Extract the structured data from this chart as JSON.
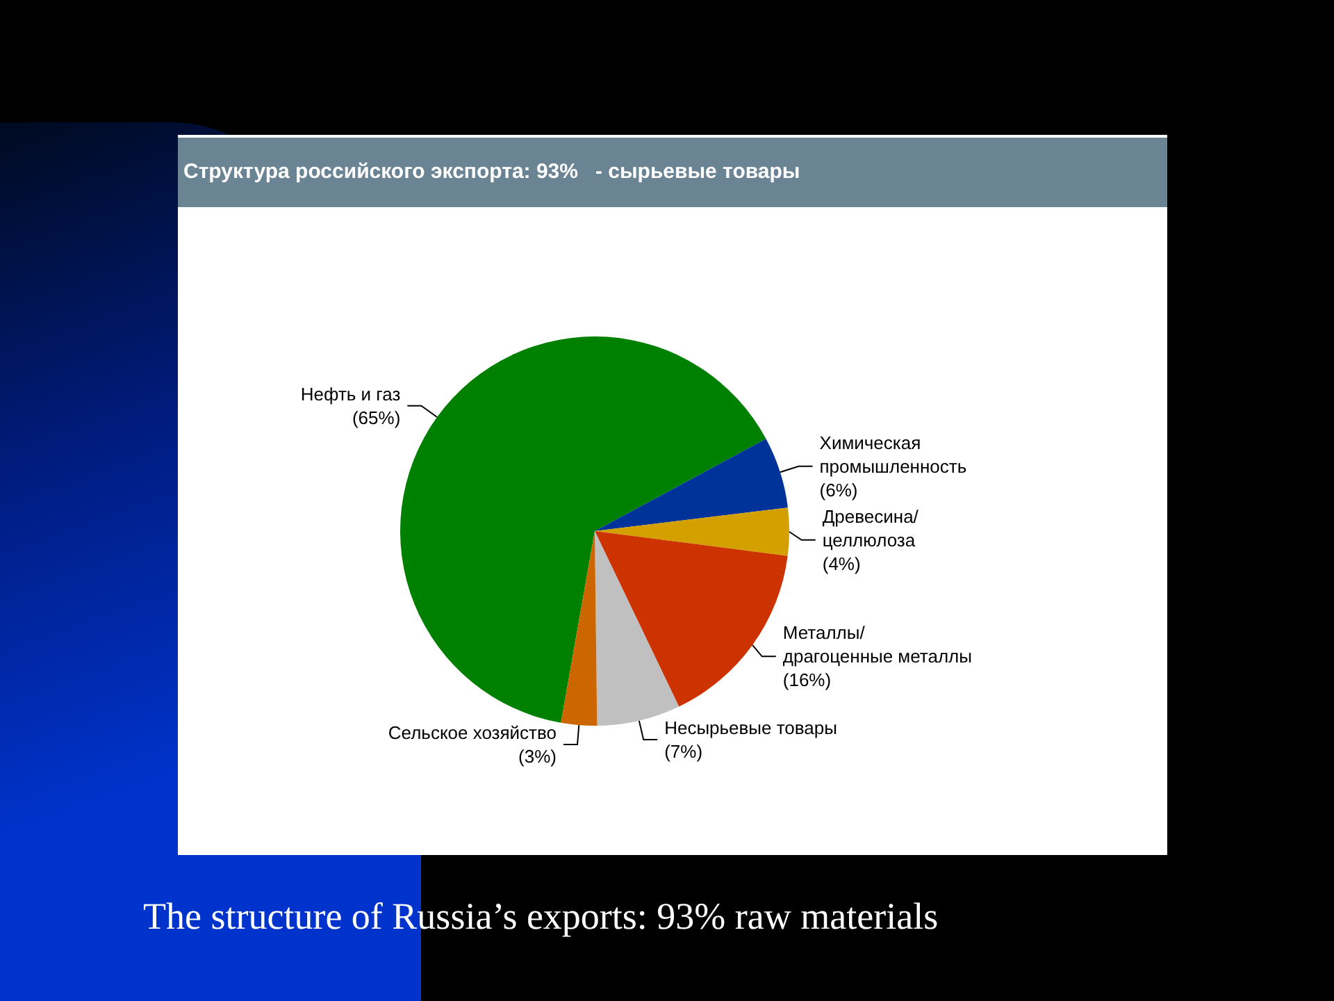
{
  "chart_data": {
    "type": "pie",
    "title": "Структура российского экспорта: 93%   - сырьевые товары",
    "categories": [
      "Нефть и газ",
      "Химическая промышленность",
      "Древесина/целлюлоза",
      "Металлы/драгоценные металлы",
      "Несырьевые товары",
      "Сельское хозяйство"
    ],
    "values": [
      65,
      6,
      4,
      16,
      7,
      3
    ],
    "value_labels": [
      "(65%)",
      "(6%)",
      "(4%)",
      "(16%)",
      "(7%)",
      "(3%)"
    ],
    "colors": [
      "#008000",
      "#003399",
      "#d4a000",
      "#cc3300",
      "#c0c0c0",
      "#cc6600"
    ],
    "legend": false,
    "annotations": [
      "The structure of Russia’s exports: 93% raw materials"
    ]
  }
}
